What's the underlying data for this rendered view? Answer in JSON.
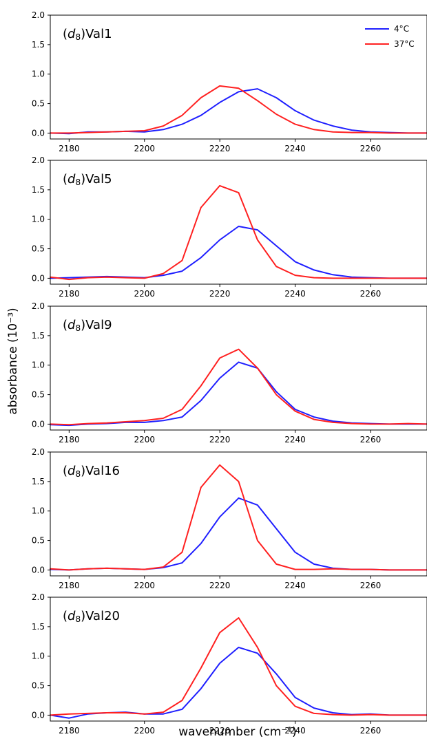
{
  "figure": {
    "xlabel": "wavenumber (cm⁻¹)",
    "ylabel": "absorbance (10⁻³)"
  },
  "legend": {
    "placement": "top-right of first panel",
    "entries": [
      {
        "label": "4°C",
        "color": "#1f1fff"
      },
      {
        "label": "37°C",
        "color": "#ff2020"
      }
    ]
  },
  "chart_data": [
    {
      "type": "line",
      "label_prefix": "(",
      "label_italic": "d",
      "label_subscript": "8",
      "label_suffix": ")Val1",
      "xlim": [
        2175,
        2275
      ],
      "ylim": [
        -0.1,
        2.0
      ],
      "xticks": [
        2180,
        2200,
        2220,
        2240,
        2260
      ],
      "yticks": [
        0.0,
        0.5,
        1.0,
        1.5,
        2.0
      ],
      "x": [
        2175,
        2180,
        2185,
        2190,
        2195,
        2200,
        2205,
        2210,
        2215,
        2220,
        2225,
        2230,
        2235,
        2240,
        2245,
        2250,
        2255,
        2260,
        2265,
        2270,
        2275
      ],
      "series": [
        {
          "name": "4°C",
          "color": "#1f1fff",
          "values": [
            0.0,
            -0.01,
            0.02,
            0.02,
            0.03,
            0.02,
            0.06,
            0.15,
            0.3,
            0.52,
            0.7,
            0.75,
            0.6,
            0.38,
            0.22,
            0.12,
            0.05,
            0.02,
            0.01,
            0.0,
            0.0
          ]
        },
        {
          "name": "37°C",
          "color": "#ff2020",
          "values": [
            0.0,
            0.0,
            0.01,
            0.02,
            0.03,
            0.04,
            0.12,
            0.3,
            0.6,
            0.8,
            0.76,
            0.55,
            0.32,
            0.15,
            0.06,
            0.02,
            0.01,
            0.01,
            0.0,
            0.0,
            0.0
          ]
        }
      ]
    },
    {
      "type": "line",
      "label_prefix": "(",
      "label_italic": "d",
      "label_subscript": "8",
      "label_suffix": ")Val5",
      "xlim": [
        2175,
        2275
      ],
      "ylim": [
        -0.1,
        2.0
      ],
      "xticks": [
        2180,
        2200,
        2220,
        2240,
        2260
      ],
      "yticks": [
        0.0,
        0.5,
        1.0,
        1.5,
        2.0
      ],
      "x": [
        2175,
        2180,
        2185,
        2190,
        2195,
        2200,
        2205,
        2210,
        2215,
        2220,
        2225,
        2230,
        2235,
        2240,
        2245,
        2250,
        2255,
        2260,
        2265,
        2270,
        2275
      ],
      "series": [
        {
          "name": "4°C",
          "color": "#1f1fff",
          "values": [
            0.0,
            0.01,
            0.02,
            0.03,
            0.02,
            0.01,
            0.05,
            0.12,
            0.35,
            0.65,
            0.88,
            0.82,
            0.55,
            0.28,
            0.14,
            0.06,
            0.02,
            0.01,
            0.0,
            0.0,
            0.0
          ]
        },
        {
          "name": "37°C",
          "color": "#ff2020",
          "values": [
            0.02,
            -0.02,
            0.01,
            0.02,
            0.01,
            0.0,
            0.08,
            0.3,
            1.2,
            1.57,
            1.45,
            0.65,
            0.2,
            0.05,
            0.01,
            0.0,
            0.0,
            0.0,
            0.0,
            0.0,
            0.0
          ]
        }
      ]
    },
    {
      "type": "line",
      "label_prefix": "(",
      "label_italic": "d",
      "label_subscript": "8",
      "label_suffix": ")Val9",
      "xlim": [
        2175,
        2275
      ],
      "ylim": [
        -0.1,
        2.0
      ],
      "xticks": [
        2180,
        2200,
        2220,
        2240,
        2260
      ],
      "yticks": [
        0.0,
        0.5,
        1.0,
        1.5,
        2.0
      ],
      "x": [
        2175,
        2180,
        2185,
        2190,
        2195,
        2200,
        2205,
        2210,
        2215,
        2220,
        2225,
        2230,
        2235,
        2240,
        2245,
        2250,
        2255,
        2260,
        2265,
        2270,
        2275
      ],
      "series": [
        {
          "name": "4°C",
          "color": "#1f1fff",
          "values": [
            -0.01,
            -0.02,
            0.0,
            0.01,
            0.03,
            0.03,
            0.06,
            0.12,
            0.4,
            0.78,
            1.05,
            0.95,
            0.55,
            0.25,
            0.12,
            0.05,
            0.02,
            0.01,
            0.0,
            0.0,
            0.0
          ]
        },
        {
          "name": "37°C",
          "color": "#ff2020",
          "values": [
            0.0,
            -0.01,
            0.01,
            0.02,
            0.04,
            0.06,
            0.1,
            0.25,
            0.65,
            1.12,
            1.27,
            0.95,
            0.5,
            0.22,
            0.08,
            0.03,
            0.01,
            0.0,
            0.0,
            0.01,
            0.0
          ]
        }
      ]
    },
    {
      "type": "line",
      "label_prefix": "(",
      "label_italic": "d",
      "label_subscript": "8",
      "label_suffix": ")Val16",
      "xlim": [
        2175,
        2275
      ],
      "ylim": [
        -0.1,
        2.0
      ],
      "xticks": [
        2180,
        2200,
        2220,
        2240,
        2260
      ],
      "yticks": [
        0.0,
        0.5,
        1.0,
        1.5,
        2.0
      ],
      "x": [
        2175,
        2180,
        2185,
        2190,
        2195,
        2200,
        2205,
        2210,
        2215,
        2220,
        2225,
        2230,
        2235,
        2240,
        2245,
        2250,
        2255,
        2260,
        2265,
        2270,
        2275
      ],
      "series": [
        {
          "name": "4°C",
          "color": "#1f1fff",
          "values": [
            0.01,
            0.0,
            0.02,
            0.03,
            0.02,
            0.01,
            0.04,
            0.12,
            0.45,
            0.9,
            1.22,
            1.1,
            0.7,
            0.3,
            0.1,
            0.03,
            0.01,
            0.01,
            0.0,
            0.0,
            0.0
          ]
        },
        {
          "name": "37°C",
          "color": "#ff2020",
          "values": [
            0.02,
            0.0,
            0.02,
            0.03,
            0.02,
            0.01,
            0.05,
            0.3,
            1.4,
            1.78,
            1.5,
            0.5,
            0.1,
            0.01,
            0.01,
            0.02,
            0.01,
            0.01,
            0.0,
            0.0,
            0.0
          ]
        }
      ]
    },
    {
      "type": "line",
      "label_prefix": "(",
      "label_italic": "d",
      "label_subscript": "8",
      "label_suffix": ")Val20",
      "xlim": [
        2175,
        2275
      ],
      "ylim": [
        -0.1,
        2.0
      ],
      "xticks": [
        2180,
        2200,
        2220,
        2240,
        2260
      ],
      "yticks": [
        0.0,
        0.5,
        1.0,
        1.5,
        2.0
      ],
      "x": [
        2175,
        2180,
        2185,
        2190,
        2195,
        2200,
        2205,
        2210,
        2215,
        2220,
        2225,
        2230,
        2235,
        2240,
        2245,
        2250,
        2255,
        2260,
        2265,
        2270,
        2275
      ],
      "series": [
        {
          "name": "4°C",
          "color": "#1f1fff",
          "values": [
            0.0,
            -0.05,
            0.02,
            0.04,
            0.05,
            0.02,
            0.02,
            0.1,
            0.45,
            0.88,
            1.15,
            1.05,
            0.7,
            0.3,
            0.12,
            0.04,
            0.01,
            0.02,
            0.0,
            0.0,
            0.0
          ]
        },
        {
          "name": "37°C",
          "color": "#ff2020",
          "values": [
            0.0,
            0.02,
            0.03,
            0.04,
            0.04,
            0.02,
            0.05,
            0.25,
            0.8,
            1.4,
            1.65,
            1.15,
            0.5,
            0.15,
            0.03,
            0.01,
            0.0,
            0.01,
            0.0,
            0.0,
            0.0
          ]
        }
      ]
    }
  ]
}
